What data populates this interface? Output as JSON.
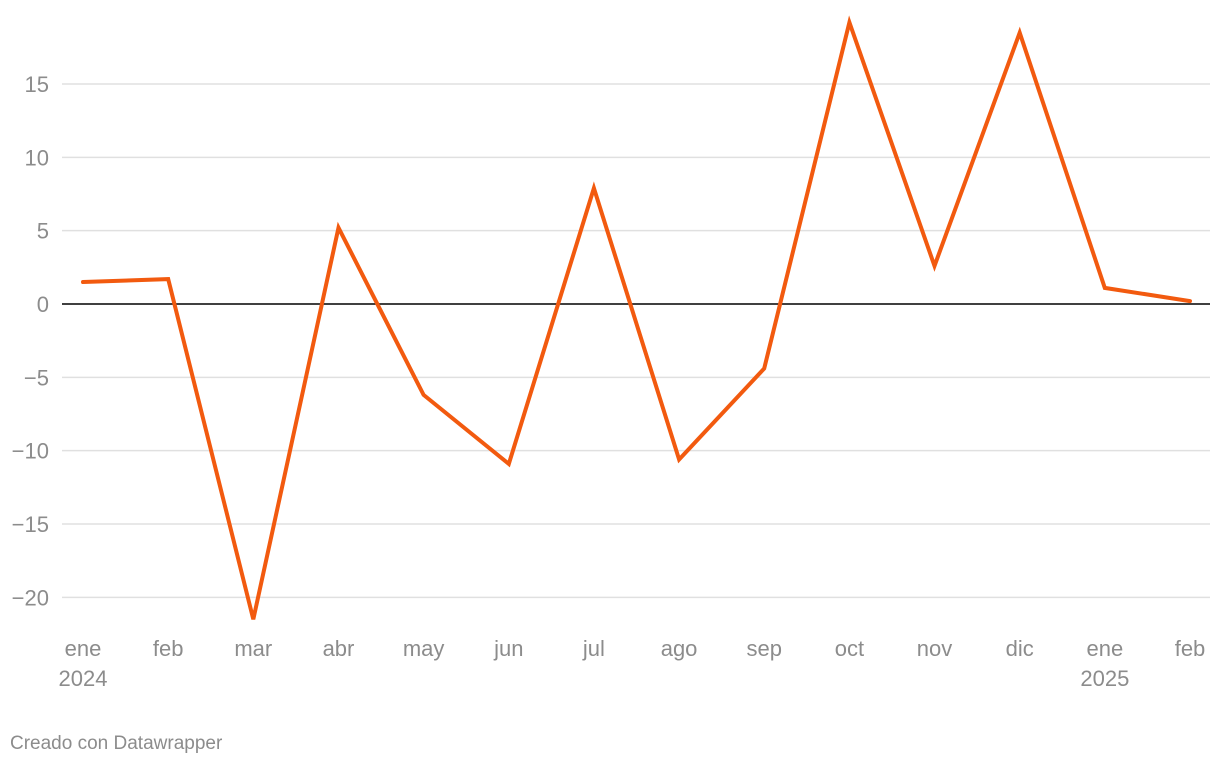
{
  "chart_data": {
    "type": "line",
    "title": "",
    "xlabel": "",
    "ylabel": "",
    "categories": [
      "ene",
      "feb",
      "mar",
      "abr",
      "may",
      "jun",
      "jul",
      "ago",
      "sep",
      "oct",
      "nov",
      "dic",
      "ene",
      "feb"
    ],
    "year_labels": [
      {
        "index": 0,
        "label": "2024"
      },
      {
        "index": 12,
        "label": "2025"
      }
    ],
    "series": [
      {
        "values": [
          1.5,
          1.7,
          -21.5,
          5.2,
          -6.2,
          -10.9,
          7.9,
          -10.6,
          -4.4,
          19.2,
          2.6,
          18.5,
          1.1,
          0.2
        ],
        "color": "#f25a0f"
      }
    ],
    "yticks": [
      15,
      10,
      5,
      0,
      -5,
      -10,
      -15,
      -20
    ],
    "ytick_labels": [
      "15",
      "10",
      "5",
      "0",
      "−5",
      "−10",
      "−15",
      "−20"
    ],
    "ylim": [
      -22,
      20
    ],
    "grid": true,
    "zero_line": true
  },
  "colors": {
    "line": "#f25a0f",
    "grid": "#e0e0e0",
    "zero_line": "#000000",
    "tick_text": "#8c8c8c"
  },
  "footer": {
    "credit": "Creado con Datawrapper"
  }
}
